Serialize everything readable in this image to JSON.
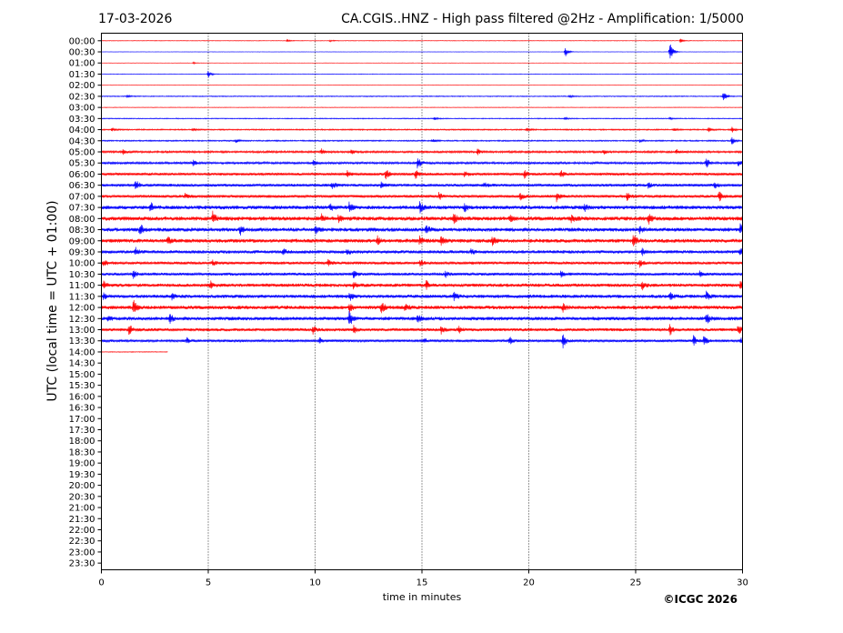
{
  "header": {
    "date": "17-03-2026",
    "title": "CA.CGIS..HNZ - High pass filtered @2Hz - Amplification: 1/5000"
  },
  "footer": {
    "copyright": "©ICGC 2026"
  },
  "chart_data": {
    "type": "line",
    "xlabel": "time in minutes",
    "ylabel": "UTC (local time = UTC + 01:00)",
    "xlim": [
      0,
      30
    ],
    "x_ticks": [
      "0",
      "5",
      "10",
      "15",
      "20",
      "25",
      "30"
    ],
    "x_tick_values": [
      0,
      5,
      10,
      15,
      20,
      25,
      30
    ],
    "y_tick_labels": [
      "00:00",
      "00:30",
      "01:00",
      "01:30",
      "02:00",
      "02:30",
      "03:00",
      "03:30",
      "04:00",
      "04:30",
      "05:00",
      "05:30",
      "06:00",
      "06:30",
      "07:00",
      "07:30",
      "08:00",
      "08:30",
      "09:00",
      "09:30",
      "10:00",
      "10:30",
      "11:00",
      "11:30",
      "12:00",
      "12:30",
      "13:00",
      "13:30",
      "14:00",
      "14:30",
      "15:00",
      "15:30",
      "16:00",
      "16:30",
      "17:00",
      "17:30",
      "18:00",
      "18:30",
      "19:00",
      "19:30",
      "20:00",
      "20:30",
      "21:00",
      "21:30",
      "22:00",
      "22:30",
      "23:00",
      "23:30"
    ],
    "grid": "vertical dotted lines at each x tick",
    "trace_colors": [
      "#ff0000",
      "#0000ff"
    ],
    "traces": [
      {
        "time": "00:00",
        "end": 30,
        "noise": 0.3,
        "events": [
          [
            8.7,
            1.5
          ],
          [
            10.7,
            1.2
          ],
          [
            27.1,
            3
          ]
        ]
      },
      {
        "time": "00:30",
        "end": 30,
        "noise": 0.2,
        "events": [
          [
            21.7,
            6
          ],
          [
            26.6,
            12
          ]
        ]
      },
      {
        "time": "01:00",
        "end": 30,
        "noise": 0.2,
        "events": [
          [
            4.3,
            1
          ]
        ]
      },
      {
        "time": "01:30",
        "end": 30,
        "noise": 0.3,
        "events": [
          [
            5.0,
            4
          ]
        ]
      },
      {
        "time": "02:00",
        "end": 30,
        "noise": 0.2,
        "events": []
      },
      {
        "time": "02:30",
        "end": 30,
        "noise": 0.5,
        "events": [
          [
            1.2,
            1.5
          ],
          [
            21.9,
            1.5
          ],
          [
            29.1,
            6
          ]
        ]
      },
      {
        "time": "03:00",
        "end": 30,
        "noise": 0.3,
        "events": []
      },
      {
        "time": "03:30",
        "end": 30,
        "noise": 0.5,
        "events": [
          [
            15.6,
            1.5
          ],
          [
            21.7,
            1.5
          ],
          [
            26.6,
            1.5
          ]
        ]
      },
      {
        "time": "04:00",
        "end": 30,
        "noise": 0.7,
        "events": [
          [
            0.5,
            2
          ],
          [
            4.3,
            1.5
          ],
          [
            19.9,
            2.5
          ],
          [
            26.8,
            2
          ],
          [
            28.4,
            2.5
          ],
          [
            29.5,
            3
          ]
        ]
      },
      {
        "time": "04:30",
        "end": 30,
        "noise": 0.7,
        "events": [
          [
            6.3,
            2
          ],
          [
            15.5,
            2
          ],
          [
            25.2,
            2
          ],
          [
            29.5,
            4
          ]
        ]
      },
      {
        "time": "05:00",
        "end": 30,
        "noise": 1.1,
        "events": [
          [
            1.0,
            3
          ],
          [
            10.3,
            3
          ],
          [
            11.7,
            3
          ],
          [
            17.6,
            3
          ],
          [
            23.5,
            3
          ],
          [
            26.9,
            3
          ]
        ]
      },
      {
        "time": "05:30",
        "end": 30,
        "noise": 1.2,
        "events": [
          [
            4.3,
            3
          ],
          [
            9.9,
            3
          ],
          [
            14.8,
            8
          ],
          [
            28.3,
            6
          ],
          [
            29.8,
            3
          ]
        ]
      },
      {
        "time": "06:00",
        "end": 30,
        "noise": 1.5,
        "events": [
          [
            11.5,
            4
          ],
          [
            13.3,
            6
          ],
          [
            14.7,
            5
          ],
          [
            17.0,
            4
          ],
          [
            19.8,
            4
          ],
          [
            21.5,
            4
          ]
        ]
      },
      {
        "time": "06:30",
        "end": 30,
        "noise": 1.6,
        "events": [
          [
            1.6,
            6
          ],
          [
            10.8,
            4
          ],
          [
            13.1,
            3
          ],
          [
            17.9,
            3
          ],
          [
            25.6,
            3
          ],
          [
            28.7,
            3
          ]
        ]
      },
      {
        "time": "07:00",
        "end": 30,
        "noise": 1.6,
        "events": [
          [
            3.9,
            3
          ],
          [
            15.8,
            4
          ],
          [
            19.6,
            5
          ],
          [
            21.3,
            5
          ],
          [
            24.6,
            4
          ],
          [
            28.9,
            6
          ]
        ]
      },
      {
        "time": "07:30",
        "end": 30,
        "noise": 2.1,
        "events": [
          [
            2.3,
            5
          ],
          [
            10.7,
            4
          ],
          [
            11.6,
            5
          ],
          [
            14.9,
            6
          ],
          [
            17.0,
            5
          ],
          [
            22.6,
            4
          ]
        ]
      },
      {
        "time": "08:00",
        "end": 30,
        "noise": 2.2,
        "events": [
          [
            5.2,
            7
          ],
          [
            10.3,
            4
          ],
          [
            11.1,
            4
          ],
          [
            16.5,
            6
          ],
          [
            19.1,
            4
          ],
          [
            22.0,
            4
          ],
          [
            25.6,
            6
          ]
        ]
      },
      {
        "time": "08:30",
        "end": 30,
        "noise": 2.1,
        "events": [
          [
            1.8,
            7
          ],
          [
            6.5,
            5
          ],
          [
            10.0,
            4
          ],
          [
            15.2,
            5
          ],
          [
            25.2,
            4
          ],
          [
            29.9,
            6
          ]
        ]
      },
      {
        "time": "09:00",
        "end": 30,
        "noise": 2.1,
        "events": [
          [
            3.1,
            4
          ],
          [
            12.9,
            5
          ],
          [
            14.9,
            5
          ],
          [
            15.9,
            5
          ],
          [
            18.3,
            4
          ],
          [
            24.9,
            7
          ]
        ]
      },
      {
        "time": "09:30",
        "end": 30,
        "noise": 1.8,
        "events": [
          [
            1.6,
            4
          ],
          [
            8.5,
            4
          ],
          [
            11.5,
            3
          ],
          [
            17.3,
            3
          ],
          [
            25.3,
            4
          ],
          [
            29.9,
            4
          ]
        ]
      },
      {
        "time": "10:00",
        "end": 30,
        "noise": 1.6,
        "events": [
          [
            0.1,
            4
          ],
          [
            5.2,
            3
          ],
          [
            10.6,
            3
          ],
          [
            14.9,
            3
          ],
          [
            25.2,
            4
          ]
        ]
      },
      {
        "time": "10:30",
        "end": 30,
        "noise": 1.6,
        "events": [
          [
            1.5,
            4
          ],
          [
            11.8,
            4
          ],
          [
            16.1,
            3
          ],
          [
            21.5,
            3
          ],
          [
            28.0,
            3
          ]
        ]
      },
      {
        "time": "11:00",
        "end": 30,
        "noise": 1.9,
        "events": [
          [
            0.1,
            5
          ],
          [
            5.1,
            4
          ],
          [
            11.8,
            4
          ],
          [
            15.2,
            5
          ],
          [
            25.3,
            5
          ],
          [
            29.9,
            4
          ]
        ]
      },
      {
        "time": "11:30",
        "end": 30,
        "noise": 1.9,
        "events": [
          [
            0.1,
            3
          ],
          [
            3.3,
            4
          ],
          [
            11.6,
            5
          ],
          [
            16.5,
            5
          ],
          [
            26.6,
            4
          ],
          [
            28.3,
            5
          ]
        ]
      },
      {
        "time": "12:00",
        "end": 30,
        "noise": 2.0,
        "events": [
          [
            1.5,
            8
          ],
          [
            11.6,
            5
          ],
          [
            13.1,
            7
          ],
          [
            14.2,
            5
          ],
          [
            21.6,
            4
          ]
        ]
      },
      {
        "time": "12:30",
        "end": 30,
        "noise": 2.0,
        "events": [
          [
            0.3,
            3
          ],
          [
            3.2,
            5
          ],
          [
            11.6,
            9
          ],
          [
            14.8,
            4
          ],
          [
            28.3,
            6
          ]
        ]
      },
      {
        "time": "13:00",
        "end": 30,
        "noise": 1.7,
        "events": [
          [
            1.3,
            6
          ],
          [
            9.9,
            5
          ],
          [
            11.8,
            4
          ],
          [
            15.9,
            4
          ],
          [
            16.7,
            4
          ],
          [
            26.6,
            6
          ],
          [
            29.8,
            6
          ]
        ]
      },
      {
        "time": "13:30",
        "end": 30,
        "noise": 1.4,
        "events": [
          [
            4.0,
            4
          ],
          [
            10.2,
            4
          ],
          [
            15.1,
            3
          ],
          [
            19.1,
            5
          ],
          [
            21.6,
            7
          ],
          [
            27.7,
            6
          ],
          [
            28.2,
            6
          ],
          [
            29.9,
            3
          ]
        ]
      },
      {
        "time": "14:00",
        "end": 3.1,
        "noise": 0.4,
        "events": []
      }
    ]
  }
}
